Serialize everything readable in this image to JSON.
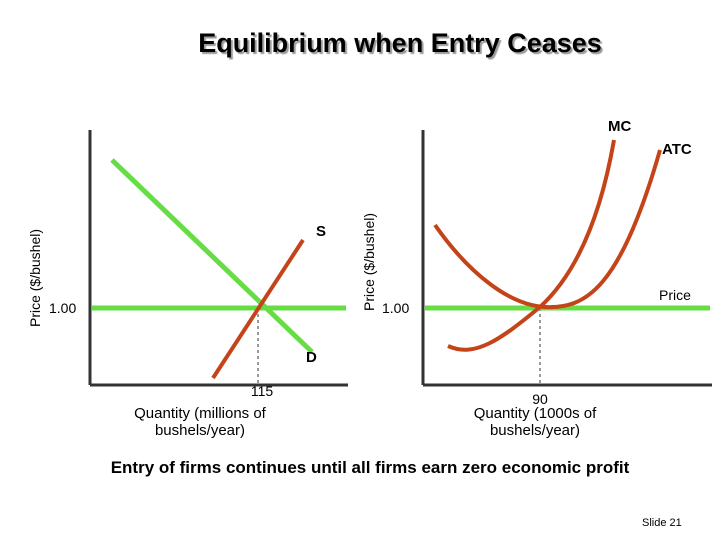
{
  "title": "Equilibrium when Entry Ceases",
  "market": {
    "ylabel": "Price ($/bushel)",
    "price_tick": "1.00",
    "quantity_tick": "115",
    "xlabel_line1": "Quantity (millions of",
    "xlabel_line2": "bushels/year)",
    "supply_label": "S",
    "demand_label": "D"
  },
  "firm": {
    "ylabel": "Price ($/bushel)",
    "price_tick": "1.00",
    "quantity_tick": "90",
    "xlabel_line1": "Quantity (1000s of",
    "xlabel_line2": "bushels/year)",
    "mc_label": "MC",
    "atc_label": "ATC",
    "price_label": "Price"
  },
  "footer": "Entry of firms continues until all firms earn zero economic profit",
  "slide_number": "Slide 21",
  "colors": {
    "green": "#66dd44",
    "curve": "#c4441a",
    "axis": "#333333"
  }
}
